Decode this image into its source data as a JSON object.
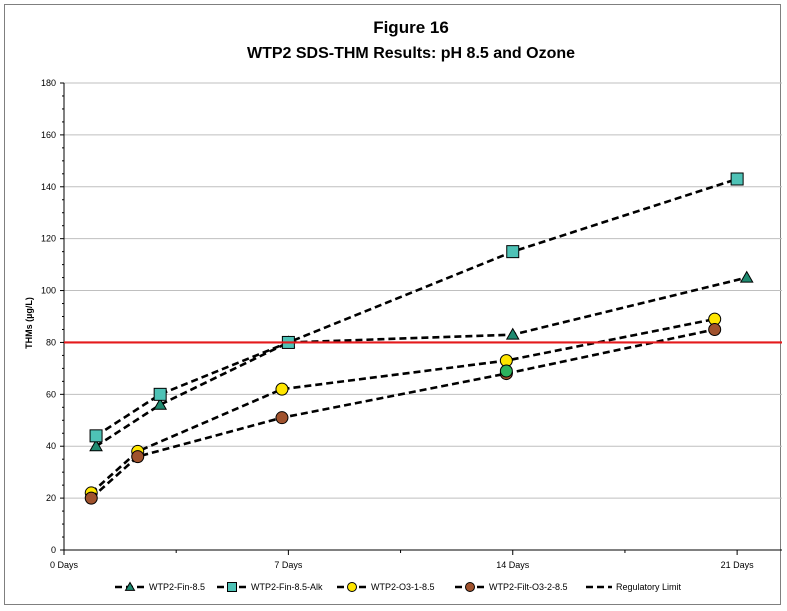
{
  "chart_data": {
    "type": "line",
    "title": "Figure 16",
    "subtitle": "WTP2 SDS-THM Results: pH 8.5 and Ozone",
    "xlabel": "",
    "ylabel": "THMs (µg/L)",
    "xlim": [
      0,
      22.4
    ],
    "ylim": [
      0,
      180
    ],
    "x_ticks": [
      {
        "value": 0,
        "label": "0 Days"
      },
      {
        "value": 7,
        "label": "7 Days"
      },
      {
        "value": 14,
        "label": "14 Days"
      },
      {
        "value": 21,
        "label": "21 Days"
      }
    ],
    "y_ticks": [
      0,
      20,
      40,
      60,
      80,
      100,
      120,
      140,
      160,
      180
    ],
    "grid": "horizontal",
    "legend_position": "bottom",
    "series": [
      {
        "name": "WTP2-Fin-8.5",
        "marker": "triangle",
        "color": "#1f8a70",
        "x": [
          1,
          3,
          7,
          14,
          21.3
        ],
        "y": [
          40,
          56,
          80,
          83,
          105
        ]
      },
      {
        "name": "WTP2-Fin-8.5-Alk",
        "marker": "square",
        "color": "#4ec2b6",
        "x": [
          1,
          3,
          7,
          14,
          21
        ],
        "y": [
          44,
          60,
          80,
          115,
          143
        ]
      },
      {
        "name": "WTP2-O3-1-8.5",
        "marker": "circle",
        "color": "#ffe600",
        "x": [
          0.85,
          2.3,
          6.8,
          13.8,
          20.3
        ],
        "y": [
          22,
          38,
          62,
          73,
          89
        ]
      },
      {
        "name": "WTP2-Filt-O3-2-8.5",
        "marker": "circle",
        "color": "#a0522d",
        "x": [
          0.85,
          2.3,
          6.8,
          13.8,
          20.3
        ],
        "y": [
          20,
          36,
          51,
          68,
          85
        ]
      },
      {
        "name": "Regulatory Limit",
        "marker": "none",
        "color": "#e41a1c",
        "x": [
          0,
          22.4
        ],
        "y": [
          80,
          80
        ]
      }
    ],
    "extra_points": [
      {
        "series": "WTP2-Fin-8.5",
        "x": 13.8,
        "y": 69,
        "color": "#2db35e",
        "marker": "circle"
      }
    ]
  }
}
